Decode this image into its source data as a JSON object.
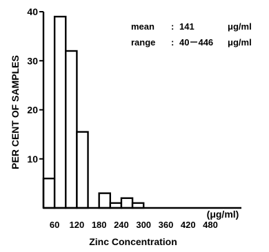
{
  "chart_data": {
    "type": "bar",
    "histogram": true,
    "bin_edges": [
      30,
      60,
      90,
      120,
      150,
      180,
      210,
      240,
      270,
      300,
      330,
      360,
      390,
      420,
      450,
      480
    ],
    "values": [
      6,
      39,
      32,
      15.5,
      0,
      3,
      1,
      2,
      1,
      0,
      0,
      0,
      0,
      0,
      0
    ],
    "values_note_unused": "",
    "x_ticks": [
      60,
      120,
      180,
      240,
      300,
      360,
      420,
      480
    ],
    "y_ticks": [
      10,
      20,
      30,
      40
    ],
    "xlim": [
      30,
      480
    ],
    "ylim": [
      0,
      40
    ],
    "xlabel": "Zinc Concentration",
    "x_unit": "(μg/ml)",
    "ylabel": "PER CENT OF SAMPLES",
    "grid": false,
    "annotations": [
      {
        "label": "mean",
        "sep": ":",
        "value": "141",
        "unit": "μg/ml"
      },
      {
        "label": "range",
        "sep": ":",
        "value": "40－446",
        "unit": "μg/ml"
      }
    ]
  }
}
